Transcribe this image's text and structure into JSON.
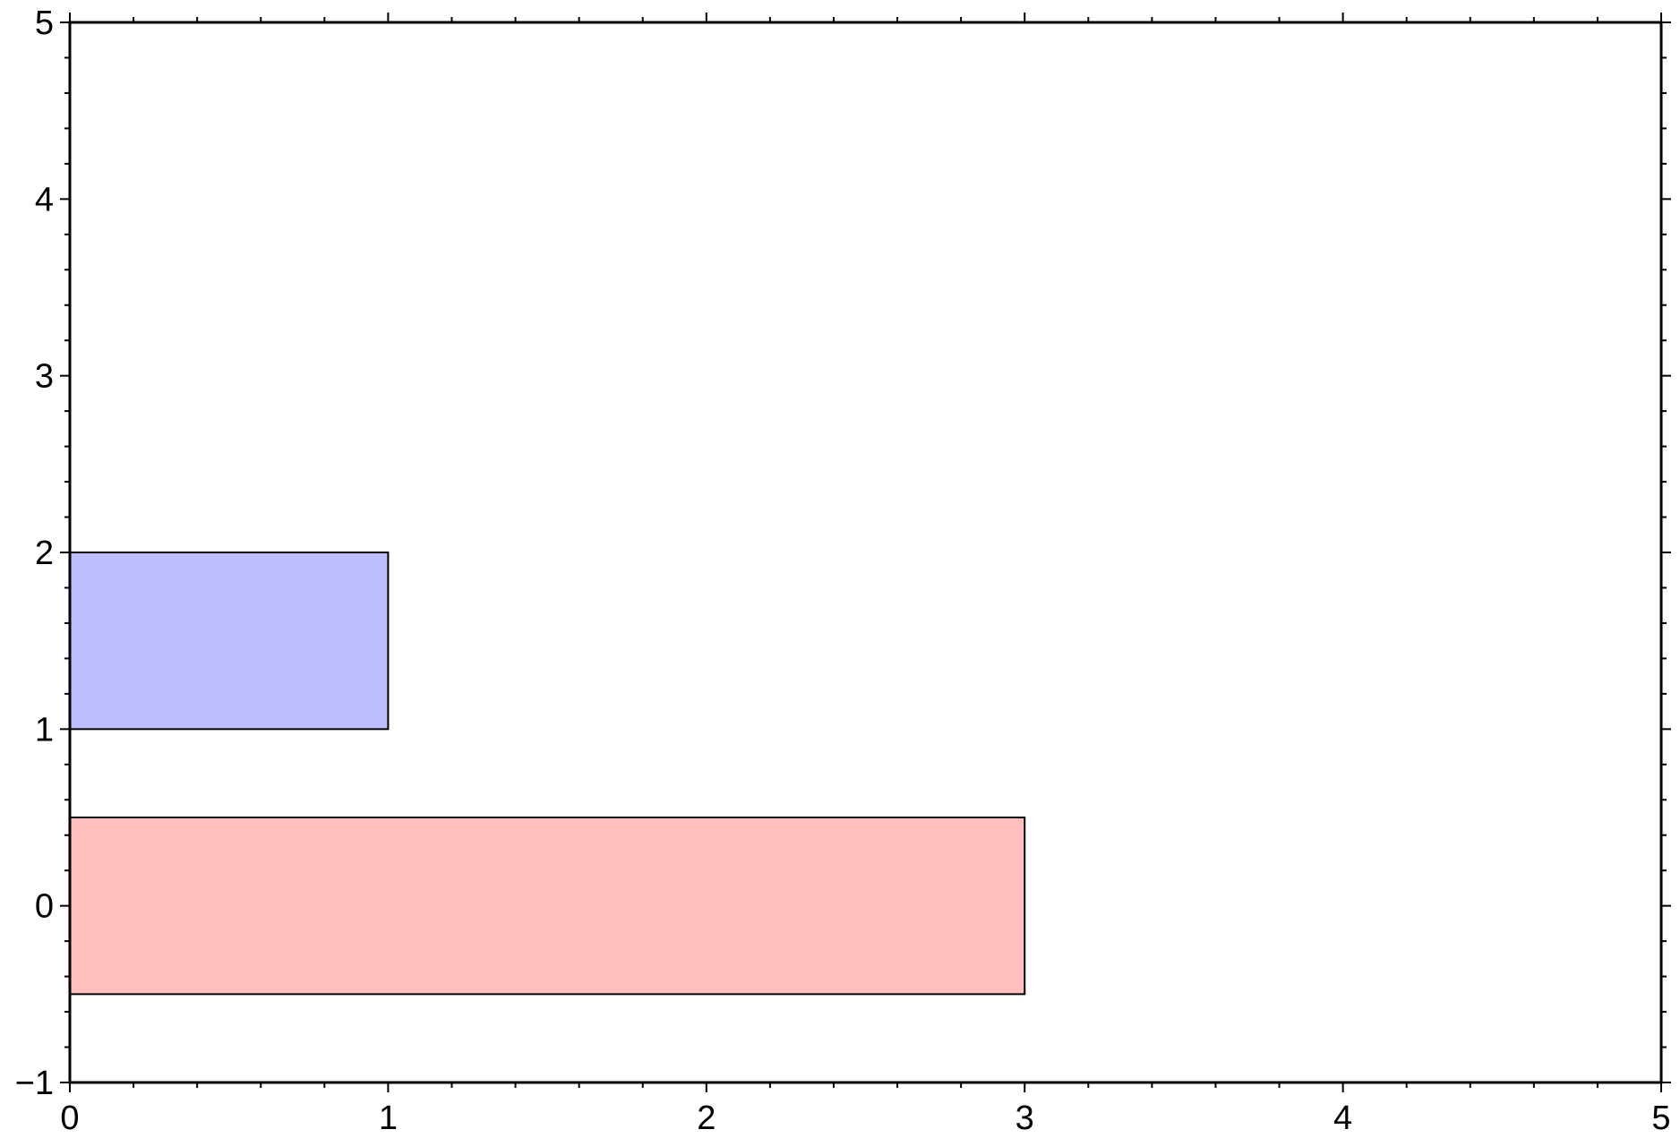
{
  "chart_data": {
    "type": "bar",
    "orientation": "horizontal",
    "title": "",
    "xlabel": "",
    "ylabel": "",
    "xlim": [
      0,
      5
    ],
    "ylim": [
      -1,
      5
    ],
    "grid": false,
    "frame": "full box with major and minor ticks on all four sides",
    "x_ticks": [
      "0",
      "1",
      "2",
      "3",
      "4",
      "5"
    ],
    "y_ticks": [
      "−1",
      "0",
      "1",
      "2",
      "3",
      "4",
      "5"
    ],
    "x_tick_values": [
      0,
      1,
      2,
      3,
      4,
      5
    ],
    "y_tick_values": [
      -1,
      0,
      1,
      2,
      3,
      4,
      5
    ],
    "x_minor_step": 0.2,
    "y_minor_step": 0.2,
    "bars": [
      {
        "x0": 0,
        "x1": 3,
        "y0": -0.5,
        "y1": 0.5,
        "color": "#ffbfbf",
        "edge_color": "#000000"
      },
      {
        "x0": 0,
        "x1": 1,
        "y0": 1,
        "y1": 2,
        "color": "#bfbfff",
        "edge_color": "#000000"
      }
    ]
  }
}
